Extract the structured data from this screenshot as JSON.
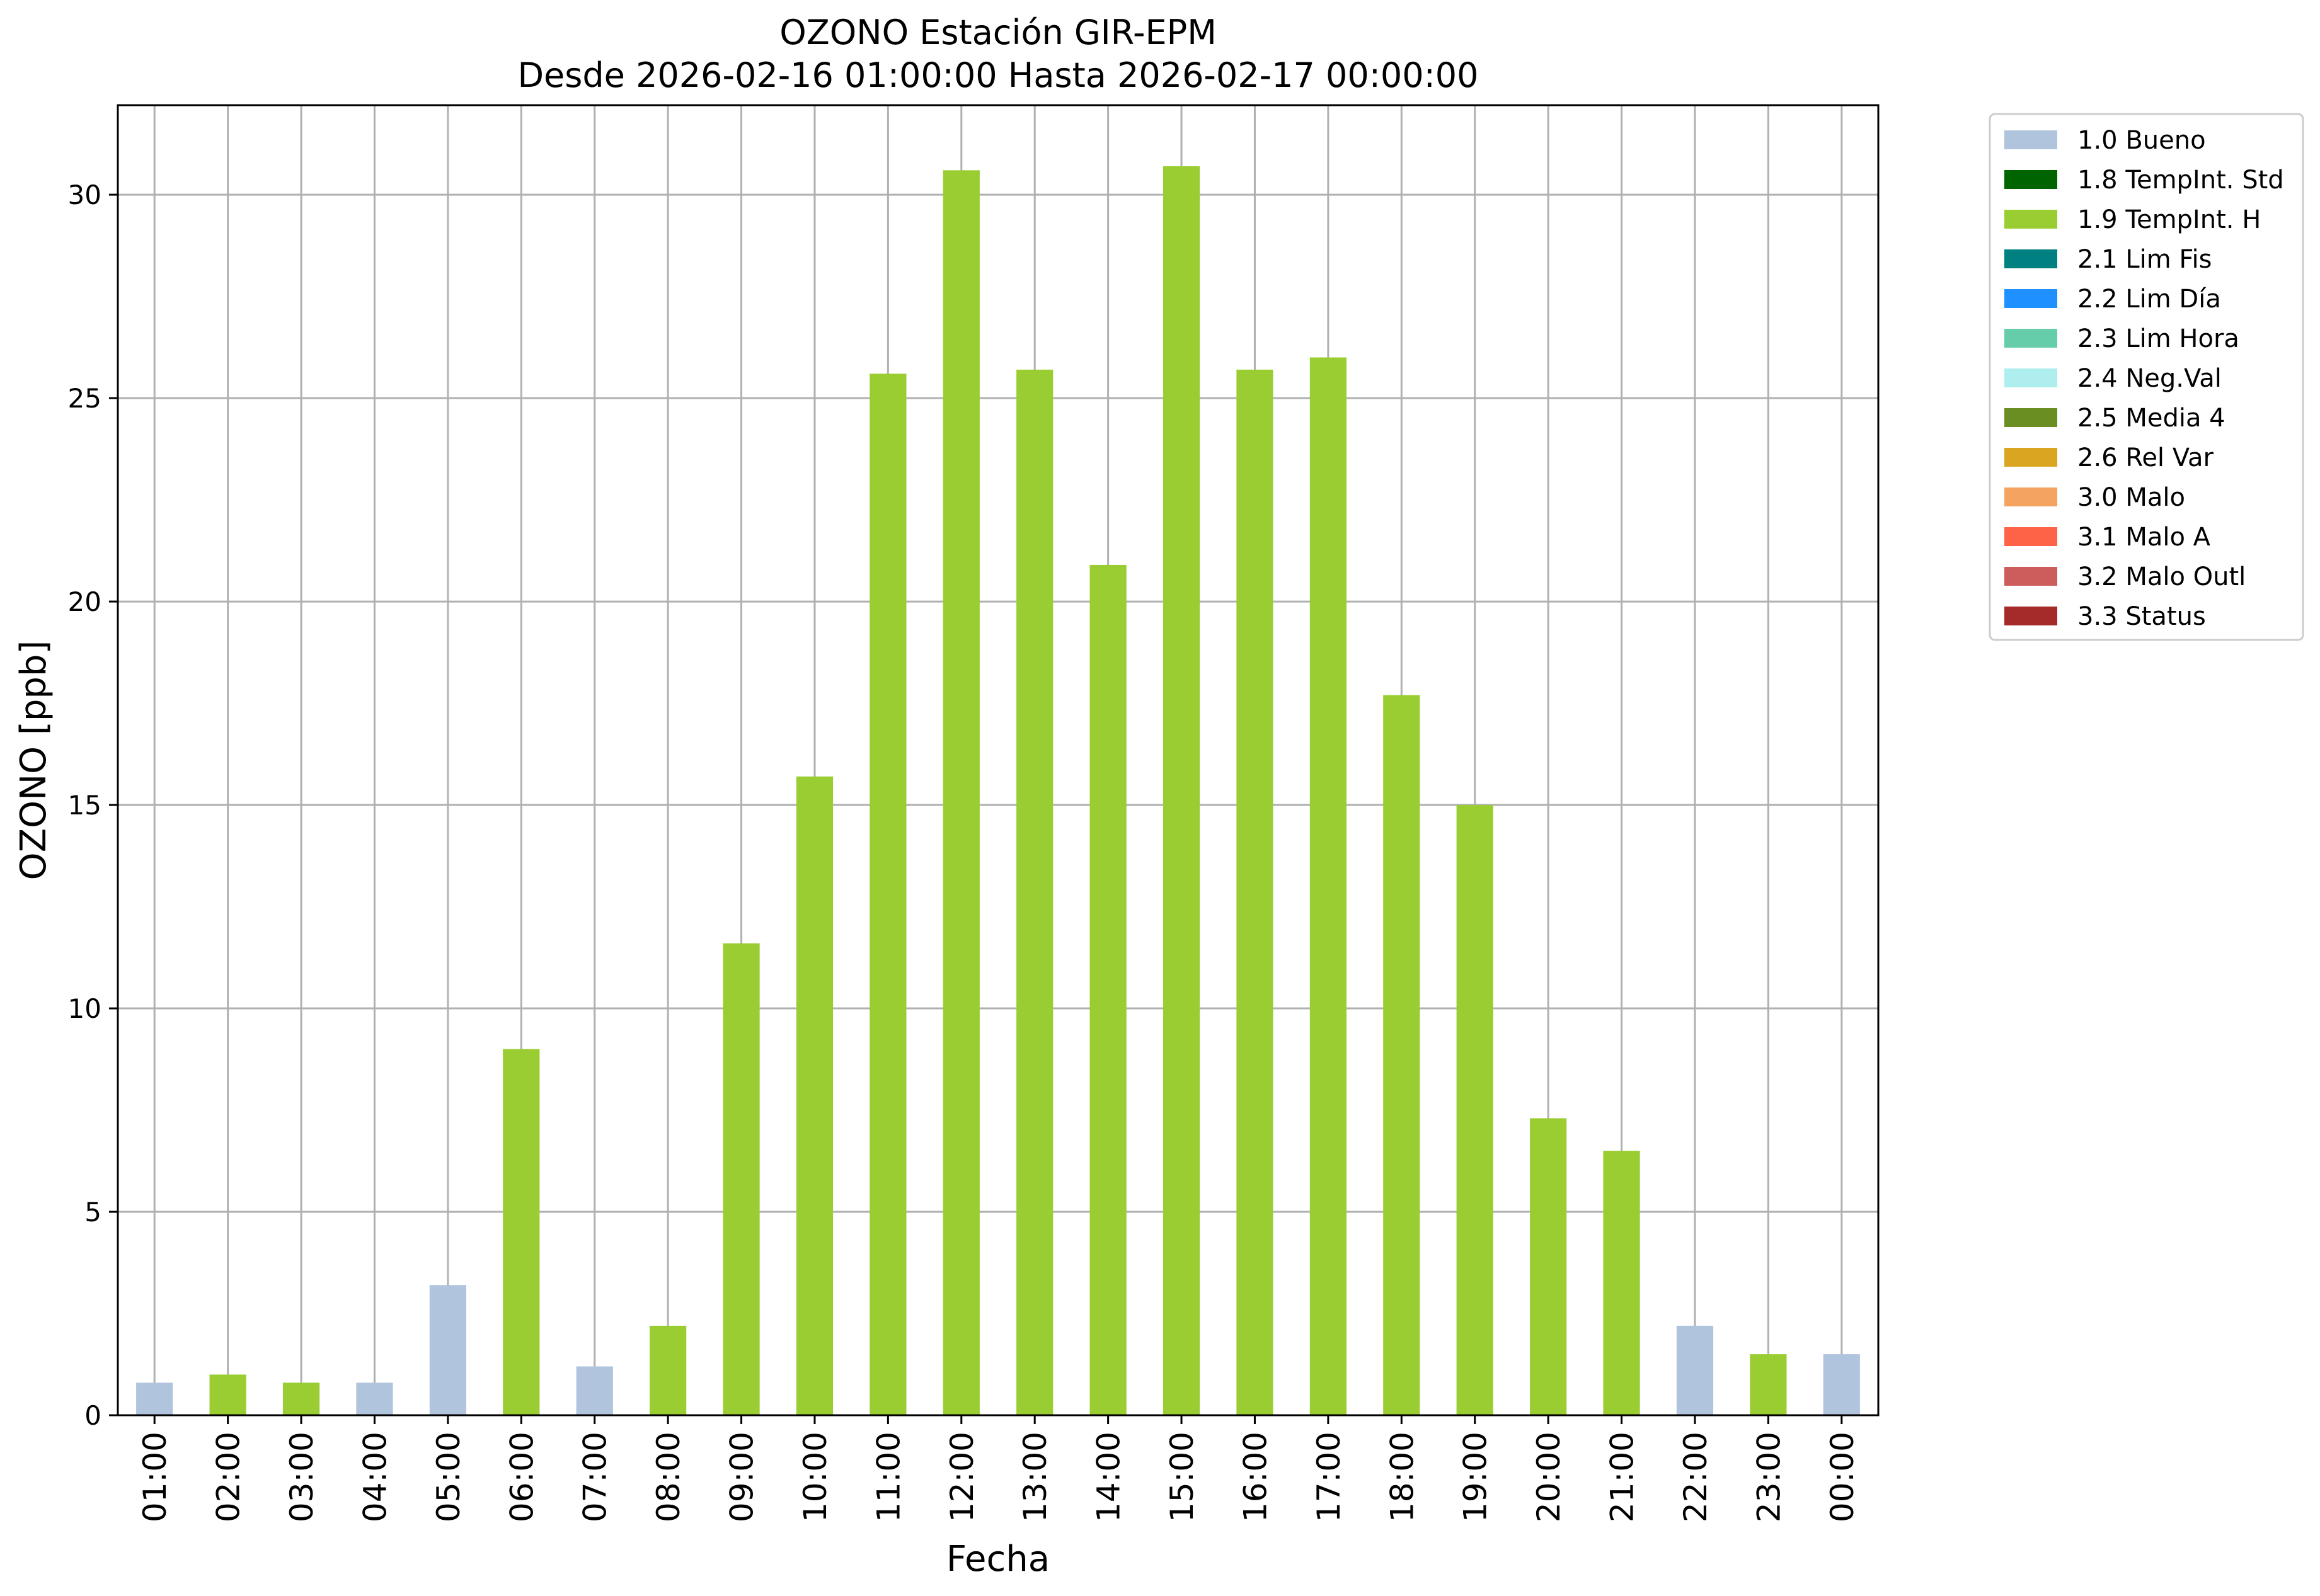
{
  "chart_data": {
    "type": "bar",
    "title": "OZONO Estación GIR-EPM",
    "subtitle": "Desde 2026-02-16 01:00:00 Hasta 2026-02-17 00:00:00",
    "xlabel": "Fecha",
    "ylabel": "OZONO [ppb]",
    "ylim": [
      0,
      32.2
    ],
    "yticks": [
      0,
      5,
      10,
      15,
      20,
      25,
      30
    ],
    "grid": true,
    "legend_position": "outside-right-top",
    "categories": [
      "01:00",
      "02:00",
      "03:00",
      "04:00",
      "05:00",
      "06:00",
      "07:00",
      "08:00",
      "09:00",
      "10:00",
      "11:00",
      "12:00",
      "13:00",
      "14:00",
      "15:00",
      "16:00",
      "17:00",
      "18:00",
      "19:00",
      "20:00",
      "21:00",
      "22:00",
      "23:00",
      "00:00"
    ],
    "values": [
      0.8,
      1.0,
      0.8,
      0.8,
      3.2,
      9.0,
      1.2,
      2.2,
      11.6,
      15.7,
      25.6,
      30.6,
      25.7,
      20.9,
      30.7,
      25.7,
      26.0,
      17.7,
      15.0,
      7.3,
      6.5,
      2.2,
      1.5,
      1.5
    ],
    "flags": [
      "1.0 Bueno",
      "1.9 TempInt. H",
      "1.9 TempInt. H",
      "1.0 Bueno",
      "1.0 Bueno",
      "1.9 TempInt. H",
      "1.0 Bueno",
      "1.9 TempInt. H",
      "1.9 TempInt. H",
      "1.9 TempInt. H",
      "1.9 TempInt. H",
      "1.9 TempInt. H",
      "1.9 TempInt. H",
      "1.9 TempInt. H",
      "1.9 TempInt. H",
      "1.9 TempInt. H",
      "1.9 TempInt. H",
      "1.9 TempInt. H",
      "1.9 TempInt. H",
      "1.9 TempInt. H",
      "1.9 TempInt. H",
      "1.0 Bueno",
      "1.9 TempInt. H",
      "1.0 Bueno"
    ],
    "legend": [
      {
        "label": "1.0 Bueno",
        "color": "#b0c4de"
      },
      {
        "label": "1.8 TempInt. Std",
        "color": "#006400"
      },
      {
        "label": "1.9 TempInt. H",
        "color": "#9acd32"
      },
      {
        "label": "2.1 Lim Fis",
        "color": "#008080"
      },
      {
        "label": "2.2 Lim Día",
        "color": "#1e90ff"
      },
      {
        "label": "2.3 Lim Hora",
        "color": "#66cdaa"
      },
      {
        "label": "2.4 Neg.Val",
        "color": "#afeeee"
      },
      {
        "label": "2.5 Media 4",
        "color": "#6b8e23"
      },
      {
        "label": "2.6 Rel Var",
        "color": "#daa520"
      },
      {
        "label": "3.0 Malo",
        "color": "#f4a460"
      },
      {
        "label": "3.1 Malo A",
        "color": "#ff6347"
      },
      {
        "label": "3.2 Malo Outl",
        "color": "#cd5c5c"
      },
      {
        "label": "3.3 Status",
        "color": "#a52a2a"
      }
    ]
  }
}
